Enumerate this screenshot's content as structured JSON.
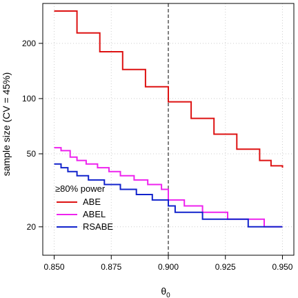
{
  "chart_data": {
    "type": "line",
    "step": true,
    "xlabel": "θ",
    "xlabel_sub": "0",
    "ylabel": "sample size (CV = 45%)",
    "xscale": "linear",
    "yscale": "log",
    "xlim": [
      0.845,
      0.955
    ],
    "ylim": [
      14,
      330
    ],
    "x_ticks": [
      0.85,
      0.875,
      0.9,
      0.925,
      0.95
    ],
    "x_tick_labels": [
      "0.850",
      "0.875",
      "0.900",
      "0.925",
      "0.950"
    ],
    "y_ticks": [
      20,
      50,
      100,
      200
    ],
    "y_tick_labels": [
      "20",
      "50",
      "100",
      "200"
    ],
    "grid": true,
    "reference_line": {
      "x": 0.9,
      "style": "dashed",
      "color": "#000000"
    },
    "legend": {
      "title": "≥80% power",
      "placement": "bottom-left",
      "entries": [
        "ABE",
        "ABEL",
        "RSABE"
      ]
    },
    "series": [
      {
        "name": "ABE",
        "color": "#dd1111",
        "x": [
          0.85,
          0.86,
          0.87,
          0.88,
          0.89,
          0.9,
          0.91,
          0.92,
          0.93,
          0.94,
          0.945,
          0.95
        ],
        "values": [
          300,
          228,
          180,
          144,
          116,
          96,
          78,
          64,
          53,
          46,
          43,
          42
        ]
      },
      {
        "name": "ABEL",
        "color": "#ee22ee",
        "x": [
          0.85,
          0.853,
          0.857,
          0.86,
          0.864,
          0.869,
          0.874,
          0.879,
          0.885,
          0.891,
          0.897,
          0.9,
          0.907,
          0.915,
          0.926,
          0.942,
          0.95
        ],
        "values": [
          54,
          52,
          48,
          46,
          44,
          42,
          40,
          38,
          36,
          34,
          32,
          28,
          26,
          24,
          22,
          20,
          20
        ]
      },
      {
        "name": "RSABE",
        "color": "#1122cc",
        "x": [
          0.85,
          0.853,
          0.856,
          0.86,
          0.865,
          0.872,
          0.879,
          0.886,
          0.893,
          0.9,
          0.903,
          0.915,
          0.935,
          0.95
        ],
        "values": [
          44,
          42,
          40,
          38,
          36,
          34,
          32,
          30,
          28,
          26,
          24,
          22,
          20,
          20
        ]
      }
    ]
  }
}
